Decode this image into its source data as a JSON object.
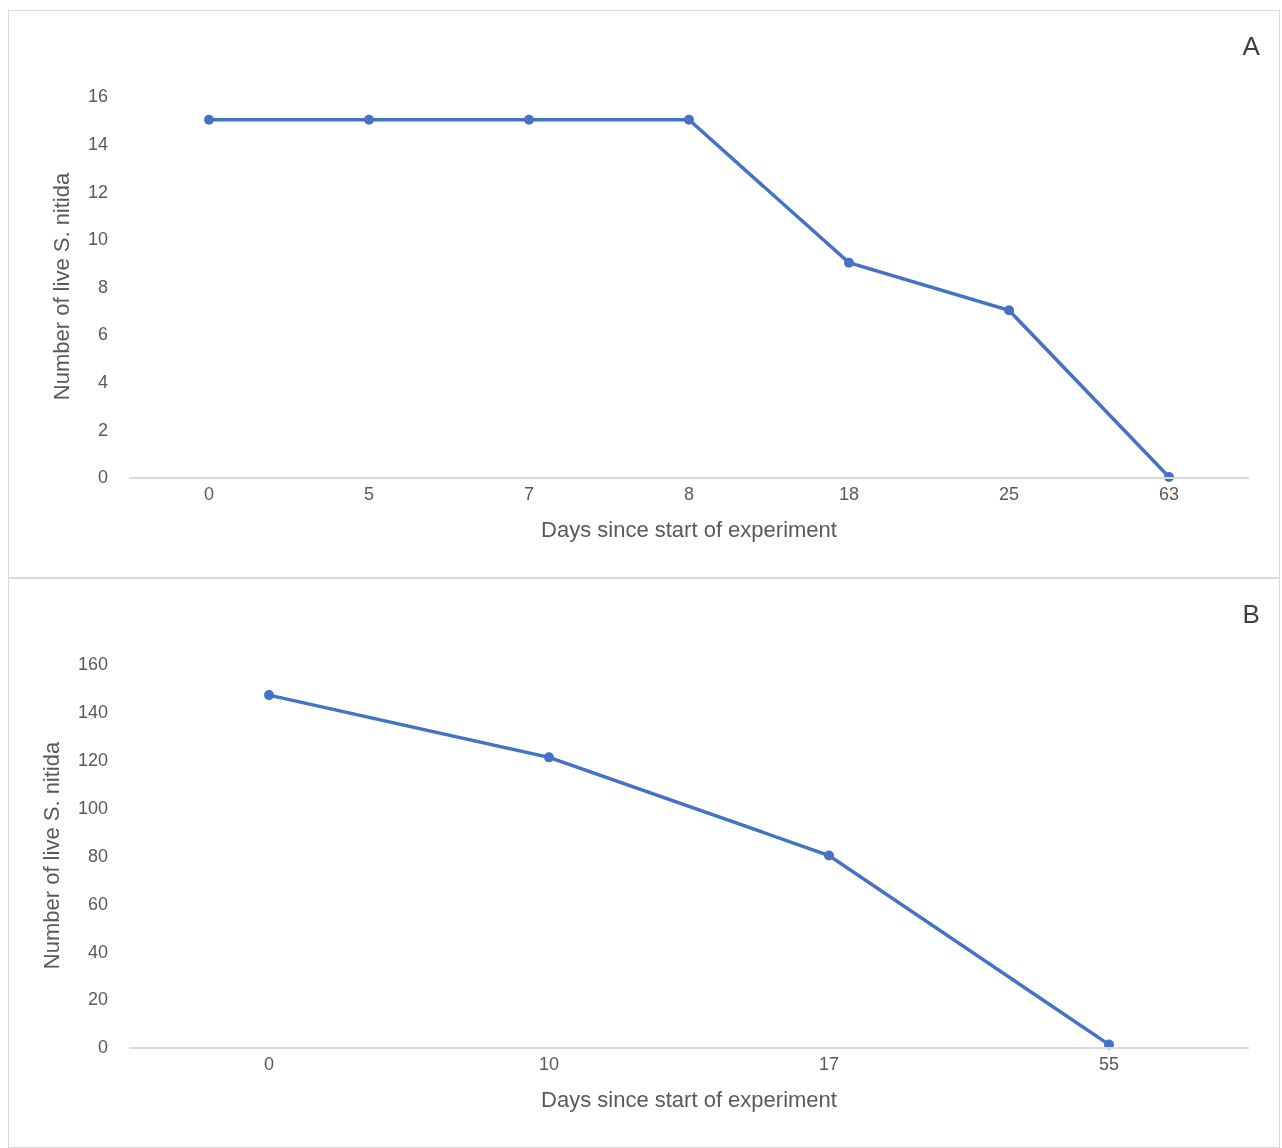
{
  "chart_data": [
    {
      "type": "line",
      "title": "A",
      "xlabel": "Days since start of experiment",
      "ylabel": "Number of live S. nitida",
      "categories": [
        "0",
        "5",
        "7",
        "8",
        "18",
        "25",
        "63"
      ],
      "series": [
        {
          "color": "#4472c4",
          "values": [
            15,
            15,
            15,
            15,
            9,
            7,
            0
          ]
        }
      ],
      "ylim": [
        0,
        16
      ],
      "yticks": [
        0,
        2,
        4,
        6,
        8,
        10,
        12,
        14,
        16
      ],
      "marker": "circle",
      "line_style": "solid"
    },
    {
      "type": "line",
      "title": "B",
      "xlabel": "Days since start of experiment",
      "ylabel": "Number of live S. nitida",
      "categories": [
        "0",
        "10",
        "17",
        "55"
      ],
      "series": [
        {
          "color": "#4472c4",
          "values": [
            147,
            121,
            80,
            1
          ]
        }
      ],
      "ylim": [
        0,
        160
      ],
      "yticks": [
        0,
        20,
        40,
        60,
        80,
        100,
        120,
        140,
        160
      ],
      "marker": "circle",
      "line_style": "solid"
    }
  ]
}
